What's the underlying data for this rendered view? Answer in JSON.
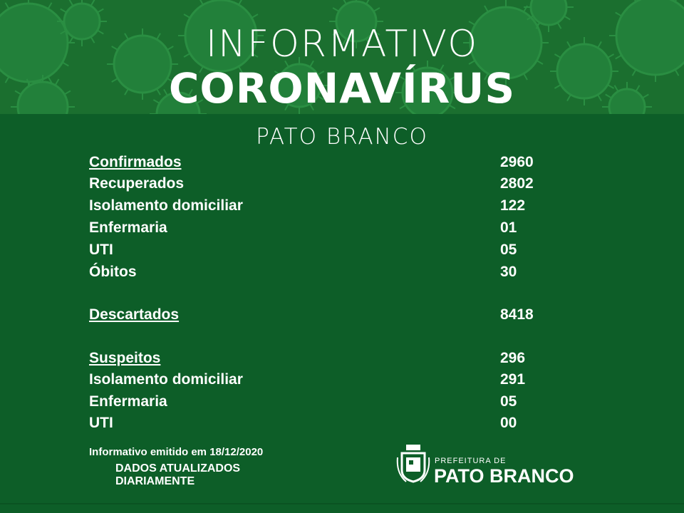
{
  "header": {
    "line1": "INFORMATIVO",
    "line2": "CORONAVÍRUS",
    "city": "PATO BRANCO"
  },
  "rows": [
    {
      "label": "Confirmados",
      "value": "2960",
      "underline": true
    },
    {
      "label": "Recuperados",
      "value": "2802"
    },
    {
      "label": "Isolamento domiciliar",
      "value": "122"
    },
    {
      "label": "Enfermaria",
      "value": "01"
    },
    {
      "label": "UTI",
      "value": "05"
    },
    {
      "label": "Óbitos",
      "value": "30"
    },
    {
      "label": "Descartados",
      "value": "8418",
      "underline": true
    },
    {
      "label": "Suspeitos",
      "value": "296",
      "underline": true
    },
    {
      "label": "Isolamento domiciliar",
      "value": "291"
    },
    {
      "label": "Enfermaria",
      "value": "05"
    },
    {
      "label": "UTI",
      "value": "00"
    }
  ],
  "footer": {
    "emitted": "Informativo emitido em 18/12/2020",
    "daily_line1": "DADOS ATUALIZADOS",
    "daily_line2": "DIARIAMENTE",
    "logo_small": "PREFEITURA DE",
    "logo_big": "PATO BRANCO"
  },
  "colors": {
    "background": "#0d5e28",
    "header_band": "#1b6f2f",
    "virus_pattern": "#24843a",
    "text": "#ffffff"
  },
  "icons": {
    "background_pattern": "virus-icon",
    "logo": "coat-of-arms-icon"
  }
}
